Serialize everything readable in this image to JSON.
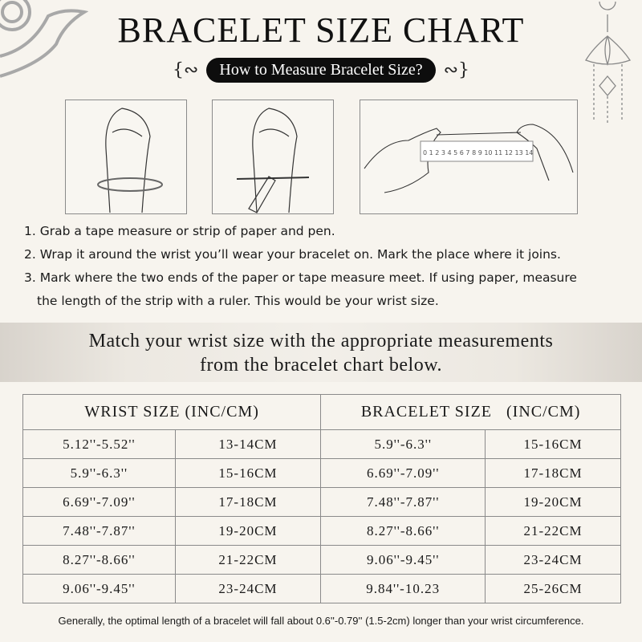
{
  "header": {
    "title": "BRACELET SIZE CHART",
    "subtitle": "How to Measure Bracelet Size?"
  },
  "illustrations": [
    {
      "name": "hand-wrapping-tape"
    },
    {
      "name": "hand-marking-with-pen"
    },
    {
      "name": "measuring-strip-with-ruler",
      "ruler_ticks": [
        "0",
        "1",
        "2",
        "3",
        "4",
        "5",
        "6",
        "7",
        "8",
        "9",
        "10",
        "11",
        "12",
        "13",
        "14"
      ]
    }
  ],
  "steps": [
    "1. Grab a tape measure or strip of paper and pen.",
    "2. Wrap it around the wrist you’ll wear your bracelet on. Mark the place where it joins.",
    "3. Mark where the two ends of the paper or tape measure meet. If using paper, measure",
    "the length of the strip with a ruler. This would be your wrist size."
  ],
  "banner": {
    "line1": "Match your wrist size with the appropriate measurements",
    "line2": "from the bracelet chart below."
  },
  "table": {
    "headers": [
      "WRIST SIZE (INC/CM)",
      "BRACELET SIZE   (INC/CM)"
    ],
    "rows": [
      [
        "5.12''-5.52''",
        "13-14CM",
        "5.9''-6.3''",
        "15-16CM"
      ],
      [
        "5.9''-6.3''",
        "15-16CM",
        "6.69''-7.09''",
        "17-18CM"
      ],
      [
        "6.69''-7.09''",
        "17-18CM",
        "7.48''-7.87''",
        "19-20CM"
      ],
      [
        "7.48''-7.87''",
        "19-20CM",
        "8.27''-8.66''",
        "21-22CM"
      ],
      [
        "8.27''-8.66''",
        "21-22CM",
        "9.06''-9.45''",
        "23-24CM"
      ],
      [
        "9.06''-9.45''",
        "23-24CM",
        "9.84''-10.23",
        "25-26CM"
      ]
    ]
  },
  "note": "Generally, the optimal length of a bracelet will fall about 0.6''-0.79'' (1.5-2cm) longer than your wrist circumference."
}
